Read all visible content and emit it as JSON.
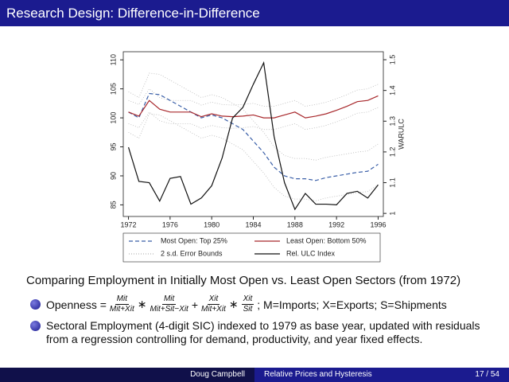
{
  "header": {
    "title": "Research Design: Difference-in-Difference"
  },
  "chart_data": {
    "type": "line",
    "x": [
      1972,
      1973,
      1974,
      1975,
      1976,
      1977,
      1978,
      1979,
      1980,
      1981,
      1982,
      1983,
      1984,
      1985,
      1986,
      1987,
      1988,
      1989,
      1990,
      1991,
      1992,
      1993,
      1994,
      1995,
      1996
    ],
    "xlim": [
      1971.5,
      1996.5
    ],
    "xticks": [
      1972,
      1976,
      1980,
      1984,
      1988,
      1992,
      1996
    ],
    "ylim": [
      83,
      111.4
    ],
    "yticks": [
      85,
      90,
      95,
      100,
      105,
      110
    ],
    "y2lim": [
      0.99,
      1.526
    ],
    "y2ticks": [
      1,
      1.1,
      1.2,
      1.3,
      1.4,
      1.5
    ],
    "y2label": "WARULC",
    "series": [
      {
        "name": "Most Open: Top 25%",
        "color": "#3a5fa8",
        "dash": "dashed",
        "values": [
          101,
          100,
          104.2,
          104,
          103,
          102,
          101,
          100,
          100.5,
          100,
          99,
          98,
          96,
          94,
          91.5,
          90,
          89.5,
          89.5,
          89.2,
          89.7,
          90,
          90.3,
          90.6,
          90.8,
          92
        ]
      },
      {
        "name": "Least Open: Bottom 50%",
        "color": "#a8282c",
        "dash": "solid",
        "values": [
          101,
          100.3,
          103,
          101.5,
          101,
          101,
          101,
          100.2,
          100.7,
          100.3,
          100.2,
          100.3,
          100.5,
          100,
          100,
          100.5,
          101,
          100,
          100.3,
          100.7,
          101.3,
          102,
          102.8,
          103,
          103.8
        ]
      },
      {
        "name": "Rel. ULC Index",
        "color": "#111111",
        "dash": "solid",
        "axis": "y2",
        "values": [
          1.215,
          1.104,
          1.1,
          1.04,
          1.114,
          1.12,
          1.03,
          1.05,
          1.09,
          1.18,
          1.31,
          1.345,
          1.42,
          1.49,
          1.25,
          1.1,
          1.013,
          1.065,
          1.03,
          1.03,
          1.028,
          1.065,
          1.072,
          1.05,
          1.093
        ]
      }
    ],
    "error_bounds": {
      "name": "2 s.d. Error Bounds",
      "color": "#b8b8b8",
      "lines": [
        [
          104.5,
          103.5,
          107.7,
          107.5,
          106.5,
          105.5,
          104.5,
          103.5,
          104,
          103.5,
          102.5,
          101.5,
          99.5,
          97.5,
          95,
          93.5,
          93,
          93,
          92.7,
          93.2,
          93.5,
          93.8,
          94.1,
          94.3,
          95.5
        ],
        [
          97.5,
          96.5,
          100.7,
          100.5,
          99.5,
          98.5,
          97.5,
          96.5,
          97,
          96.5,
          95.5,
          94.5,
          92.5,
          90.5,
          88,
          86.5,
          86,
          86,
          85.7,
          86.2,
          86.5,
          86.8,
          87.1,
          87.3,
          88.5
        ],
        [
          103,
          102.3,
          105,
          103.5,
          103,
          103,
          103,
          102.2,
          102.7,
          102.3,
          102.2,
          102.3,
          102.5,
          102,
          102,
          102.5,
          103,
          102,
          102.3,
          102.7,
          103.3,
          104,
          104.8,
          105,
          105.8
        ],
        [
          99,
          98.3,
          101,
          99.5,
          99,
          99,
          99,
          98.2,
          98.7,
          98.3,
          98.2,
          98.3,
          98.5,
          98,
          98,
          98.5,
          99,
          98,
          98.3,
          98.7,
          99.3,
          100,
          100.8,
          101,
          101.8
        ]
      ]
    }
  },
  "body": {
    "heading": "Comparing Employment in Initially Most Open vs. Least Open Sectors (from 1972)",
    "bullet1": {
      "lead": "Openness =",
      "f1": {
        "num": "Mit",
        "den": "Mit+Xit"
      },
      "op1": "∗",
      "f2": {
        "num": "Mit",
        "den": "Mit+Sit−Xit"
      },
      "op2": "+",
      "f3": {
        "num": "Xit",
        "den": "Mit+Xit"
      },
      "op3": "∗",
      "f4": {
        "num": "Xit",
        "den": "Sit"
      },
      "tail": "; M=Imports; X=Exports; S=Shipments"
    },
    "bullet2": "Sectoral Employment (4-digit SIC) indexed to 1979 as base year, updated with residuals from a regression controlling for demand, productivity, and year fixed effects."
  },
  "footer": {
    "author": "Doug Campbell",
    "talk": "Relative Prices and Hysteresis",
    "page": "17 / 54"
  }
}
